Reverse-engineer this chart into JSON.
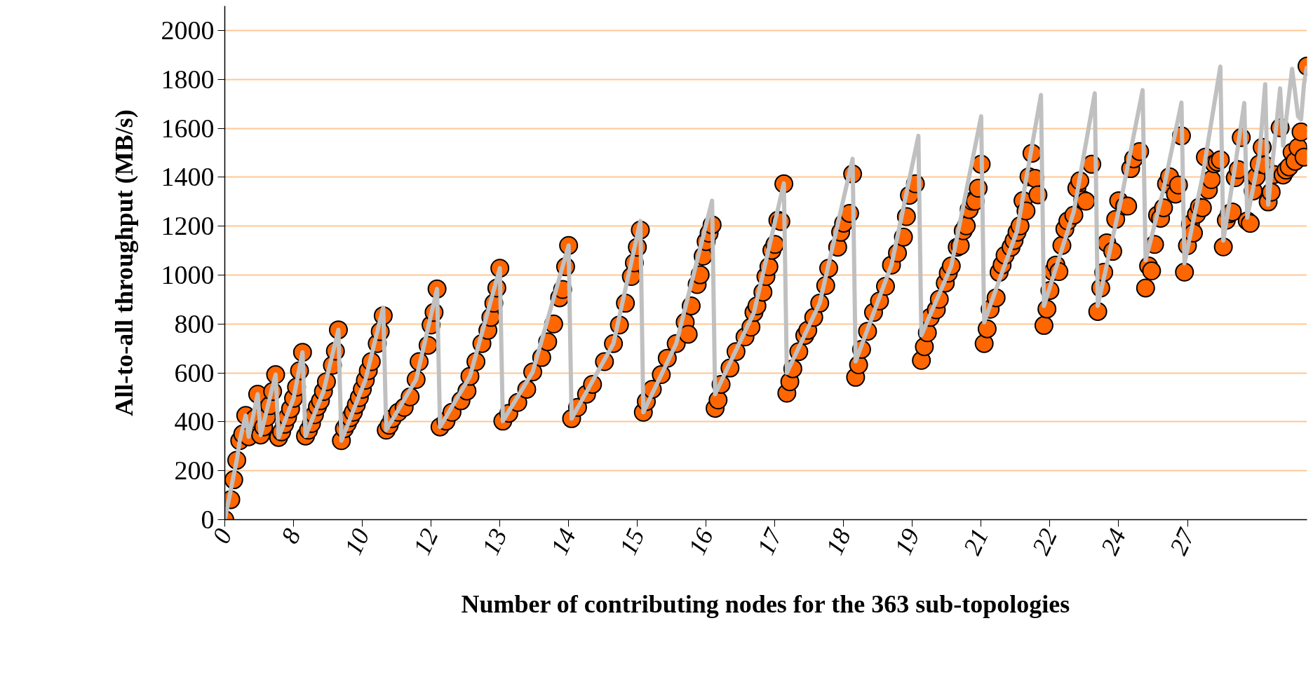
{
  "chart_data": {
    "type": "scatter",
    "xlabel": "Number of contributing nodes for the 363 sub-topologies",
    "ylabel": "All-to-all throughput (MB/s)",
    "ylim": [
      0,
      2100
    ],
    "yticks": [
      0,
      200,
      400,
      600,
      800,
      1000,
      1200,
      1400,
      1600,
      1800,
      2000
    ],
    "categories": [
      "0",
      null,
      null,
      null,
      null,
      null,
      null,
      null,
      null,
      null,
      null,
      null,
      null,
      null,
      null,
      null,
      null,
      null,
      null,
      null,
      null,
      null,
      null,
      "8",
      null,
      null,
      null,
      null,
      null,
      null,
      null,
      null,
      null,
      null,
      null,
      null,
      null,
      null,
      null,
      null,
      null,
      null,
      null,
      null,
      null,
      null,
      "10",
      null,
      null,
      null,
      null,
      null,
      null,
      null,
      null,
      null,
      null,
      null,
      null,
      null,
      null,
      null,
      null,
      null,
      null,
      null,
      null,
      null,
      null,
      "12",
      null,
      null,
      null,
      null,
      null,
      null,
      null,
      null,
      null,
      null,
      null,
      null,
      null,
      null,
      null,
      null,
      null,
      null,
      null,
      null,
      null,
      null,
      "13",
      null,
      null,
      null,
      null,
      null,
      null,
      null,
      null,
      null,
      null,
      null,
      null,
      null,
      null,
      null,
      null,
      null,
      null,
      null,
      null,
      null,
      null,
      "14",
      null,
      null,
      null,
      null,
      null,
      null,
      null,
      null,
      null,
      null,
      null,
      null,
      null,
      null,
      null,
      null,
      null,
      null,
      null,
      null,
      null,
      null,
      "15",
      null,
      null,
      null,
      null,
      null,
      null,
      null,
      null,
      null,
      null,
      null,
      null,
      null,
      null,
      null,
      null,
      null,
      null,
      null,
      null,
      null,
      null,
      "16",
      null,
      null,
      null,
      null,
      null,
      null,
      null,
      null,
      null,
      null,
      null,
      null,
      null,
      null,
      null,
      null,
      null,
      null,
      null,
      null,
      null,
      null,
      "17",
      null,
      null,
      null,
      null,
      null,
      null,
      null,
      null,
      null,
      null,
      null,
      null,
      null,
      null,
      null,
      null,
      null,
      null,
      null,
      null,
      null,
      null,
      "18",
      null,
      null,
      null,
      null,
      null,
      null,
      null,
      null,
      null,
      null,
      null,
      null,
      null,
      null,
      null,
      null,
      null,
      null,
      null,
      null,
      null,
      null,
      "19",
      null,
      null,
      null,
      null,
      null,
      null,
      null,
      null,
      null,
      null,
      null,
      null,
      null,
      null,
      null,
      null,
      null,
      null,
      null,
      null,
      null,
      null,
      "21",
      null,
      null,
      null,
      null,
      null,
      null,
      null,
      null,
      null,
      null,
      null,
      null,
      null,
      null,
      null,
      null,
      null,
      null,
      null,
      null,
      null,
      null,
      "22",
      null,
      null,
      null,
      null,
      null,
      null,
      null,
      null,
      null,
      null,
      null,
      null,
      null,
      null,
      null,
      null,
      null,
      null,
      null,
      null,
      null,
      null,
      "24",
      null,
      null,
      null,
      null,
      null,
      null,
      null,
      null,
      null,
      null,
      null,
      null,
      null,
      null,
      null,
      null,
      null,
      null,
      null,
      null,
      null,
      null,
      "27",
      null,
      null,
      null,
      null,
      null,
      null,
      null,
      null,
      null,
      null,
      null,
      null,
      null,
      null,
      null,
      null,
      null,
      null,
      null,
      null,
      null,
      null,
      null,
      null,
      null,
      null,
      null,
      null,
      null,
      null,
      null,
      null,
      null,
      null,
      null,
      null,
      null,
      null,
      null,
      null
    ],
    "grid": "y",
    "marker": "circle",
    "line_style": "solid",
    "series": [
      {
        "type": "line",
        "color": "#c0c0c0",
        "marker": "none",
        "values": [
          0,
          null,
          null,
          null,
          243,
          323,
          null,
          426,
          339,
          null,
          null,
          513,
          346,
          null,
          null,
          null,
          null,
          593,
          336,
          null,
          null,
          null,
          null,
          496,
          null,
          null,
          684,
          342,
          null,
          null,
          null,
          null,
          null,
          524,
          null,
          null,
          null,
          null,
          776,
          323,
          null,
          null,
          null,
          null,
          null,
          null,
          null,
          570,
          null,
          null,
          null,
          null,
          null,
          867,
          366,
          null,
          null,
          null,
          null,
          null,
          null,
          null,
          null,
          null,
          573,
          null,
          null,
          null,
          null,
          null,
          null,
          943,
          379,
          null,
          null,
          null,
          null,
          null,
          null,
          null,
          null,
          null,
          586,
          null,
          null,
          null,
          null,
          null,
          null,
          null,
          null,
          null,
          1028,
          403,
          null,
          null,
          null,
          null,
          null,
          null,
          null,
          null,
          null,
          604,
          null,
          null,
          null,
          null,
          null,
          null,
          null,
          null,
          null,
          null,
          null,
          1121,
          413,
          null,
          null,
          null,
          null,
          null,
          null,
          null,
          null,
          null,
          null,
          null,
          null,
          null,
          720,
          null,
          null,
          null,
          null,
          null,
          null,
          null,
          null,
          1221,
          439,
          null,
          null,
          null,
          null,
          null,
          null,
          null,
          null,
          null,
          null,
          720,
          null,
          null,
          null,
          null,
          null,
          null,
          null,
          null,
          null,
          null,
          null,
          1304,
          513,
          null,
          null,
          null,
          null,
          null,
          null,
          null,
          null,
          null,
          null,
          null,
          null,
          847,
          null,
          null,
          null,
          null,
          null,
          null,
          null,
          null,
          null,
          1375,
          600,
          null,
          null,
          null,
          null,
          null,
          null,
          null,
          null,
          null,
          null,
          885,
          null,
          null,
          null,
          null,
          null,
          null,
          null,
          null,
          null,
          null,
          1475,
          647,
          null,
          null,
          null,
          null,
          null,
          null,
          null,
          null,
          null,
          null,
          null,
          1041,
          null,
          null,
          null,
          null,
          null,
          null,
          null,
          null,
          1569,
          754,
          null,
          null,
          null,
          null,
          null,
          null,
          null,
          null,
          null,
          1037,
          null,
          null,
          null,
          null,
          null,
          null,
          null,
          null,
          null,
          1649,
          807,
          null,
          null,
          null,
          null,
          null,
          null,
          null,
          null,
          null,
          null,
          1180,
          null,
          null,
          null,
          null,
          null,
          null,
          null,
          1736,
          874,
          null,
          null,
          null,
          null,
          null,
          null,
          null,
          null,
          null,
          1260,
          null,
          null,
          null,
          null,
          null,
          null,
          1743,
          874,
          null,
          null,
          null,
          null,
          null,
          null,
          null,
          1320,
          null,
          null,
          null,
          null,
          null,
          null,
          1756,
          1061,
          null,
          null,
          null,
          null,
          null,
          1350,
          null,
          null,
          null,
          null,
          null,
          1705,
          1048,
          null,
          null,
          null,
          null,
          null,
          1400,
          null,
          null,
          null,
          null,
          null,
          1852,
          1141,
          null,
          null,
          null,
          1450,
          null,
          null,
          1703,
          1235,
          null,
          null,
          null,
          1480,
          null,
          1780,
          1288,
          null,
          null,
          null,
          1763,
          1529,
          null,
          null,
          1843,
          null,
          1649,
          1636,
          1783,
          1854
        ]
      },
      {
        "color": "#ff6600",
        "values": [
          0,
          null,
          82,
          163,
          243,
          323,
          350,
          426,
          339,
          null,
          413,
          513,
          346,
          379,
          419,
          466,
          524,
          593,
          336,
          359,
          390,
          419,
          453,
          496,
          542,
          609,
          684,
          342,
          366,
          393,
          429,
          462,
          486,
          524,
          564,
          null,
          631,
          689,
          776,
          323,
          372,
          393,
          417,
          439,
          470,
          499,
          533,
          570,
          609,
          646,
          null,
          720,
          769,
          834,
          366,
          386,
          413,
          null,
          439,
          null,
          459,
          null,
          502,
          null,
          573,
          646,
          null,
          null,
          713,
          796,
          847,
          943,
          379,
          null,
          403,
          null,
          439,
          null,
          null,
          486,
          null,
          526,
          586,
          null,
          646,
          null,
          720,
          null,
          774,
          827,
          885,
          947,
          1028,
          403,
          null,
          435,
          null,
          null,
          479,
          null,
          null,
          533,
          null,
          604,
          null,
          null,
          663,
          null,
          727,
          null,
          800,
          null,
          907,
          941,
          1034,
          1121,
          413,
          null,
          459,
          null,
          null,
          513,
          null,
          553,
          null,
          null,
          null,
          646,
          null,
          null,
          720,
          null,
          796,
          null,
          885,
          null,
          994,
          1050,
          1114,
          1184,
          439,
          483,
          null,
          533,
          null,
          null,
          593,
          null,
          660,
          null,
          null,
          720,
          null,
          null,
          807,
          758,
          874,
          null,
          961,
          1001,
          1077,
          1137,
          1171,
          1205,
          455,
          489,
          553,
          null,
          null,
          620,
          null,
          687,
          null,
          null,
          747,
          null,
          787,
          847,
          874,
          null,
          930,
          994,
          1034,
          1101,
          1125,
          1224,
          1219,
          1373,
          517,
          564,
          617,
          null,
          687,
          null,
          753,
          774,
          null,
          827,
          null,
          885,
          null,
          957,
          1028,
          null,
          null,
          1114,
          1175,
          1212,
          null,
          1252,
          1413,
          582,
          633,
          696,
          null,
          770,
          null,
          847,
          null,
          894,
          null,
          954,
          null,
          1041,
          null,
          1090,
          null,
          1155,
          1239,
          1326,
          null,
          1373,
          null,
          651,
          707,
          764,
          827,
          null,
          858,
          901,
          null,
          967,
          1008,
          1037,
          null,
          1114,
          1120,
          1181,
          1201,
          1268,
          1302,
          1302,
          1355,
          1453,
          720,
          780,
          860,
          null,
          907,
          1011,
          1041,
          1081,
          null,
          1114,
          1141,
          1175,
          1201,
          1304,
          1262,
          1402,
          1498,
          1395,
          1328,
          null,
          794,
          861,
          937,
          1014,
          1041,
          1014,
          1121,
          1188,
          1221,
          null,
          1245,
          1355,
          1385,
          1308,
          1302,
          null,
          1453,
          null,
          851,
          947,
          1011,
          1132,
          null,
          1097,
          1228,
          1304,
          null,
          1282,
          1282,
          1435,
          1475,
          null,
          1505,
          null,
          947,
          1037,
          1017,
          1125,
          1245,
          1232,
          1275,
          1373,
          1402,
          null,
          1331,
          1368,
          1569,
          1012,
          1120,
          1208,
          1172,
          1248,
          1278,
          1275,
          1482,
          1348,
          1390,
          1455,
          1462,
          1471,
          1115,
          1224,
          1251,
          1258,
          1398,
          1431,
          1562,
          null,
          1221,
          1211,
          1344,
          1402,
          1453,
          1522,
          1449,
          1299,
          1339,
          1411,
          null,
          1602,
          1409,
          1429,
          1442,
          1502,
          1465,
          1522,
          1585,
          1482,
          1854
        ]
      }
    ]
  }
}
